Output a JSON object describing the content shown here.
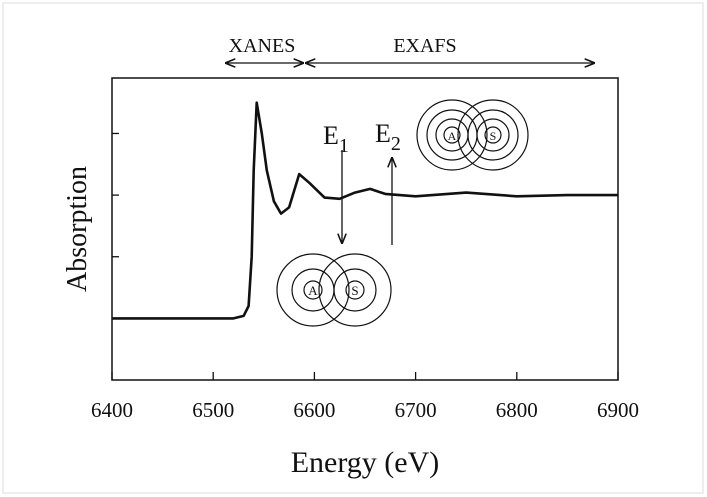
{
  "chart_data": {
    "type": "line",
    "x_label": "Energy (eV)",
    "y_label": "Absorption",
    "xlim": [
      6400,
      6900
    ],
    "xticks": [
      6400,
      6500,
      6600,
      6700,
      6800,
      6900
    ],
    "ylim": [
      -0.5,
      1.95
    ],
    "yticks": [
      0,
      0.5,
      1,
      1.5
    ],
    "regions": [
      "XANES",
      "EXAFS"
    ],
    "energies": [
      {
        "text": "E",
        "subscript": "1"
      },
      {
        "text": "E",
        "subscript": "2"
      }
    ],
    "atom_labels": [
      "A",
      "S"
    ],
    "series": [
      {
        "color": "#111111",
        "x": [
          6400,
          6520,
          6530,
          6535,
          6538,
          6540,
          6543,
          6548,
          6553,
          6560,
          6567,
          6575,
          6585,
          6595,
          6610,
          6625,
          6640,
          6655,
          6670,
          6700,
          6750,
          6800,
          6850,
          6900
        ],
        "values": [
          0,
          0,
          0.02,
          0.1,
          0.5,
          1.2,
          1.75,
          1.5,
          1.2,
          0.95,
          0.85,
          0.9,
          1.17,
          1.1,
          0.98,
          0.97,
          1.02,
          1.05,
          1.01,
          0.99,
          1.02,
          0.99,
          1.0,
          1.0
        ]
      }
    ]
  }
}
